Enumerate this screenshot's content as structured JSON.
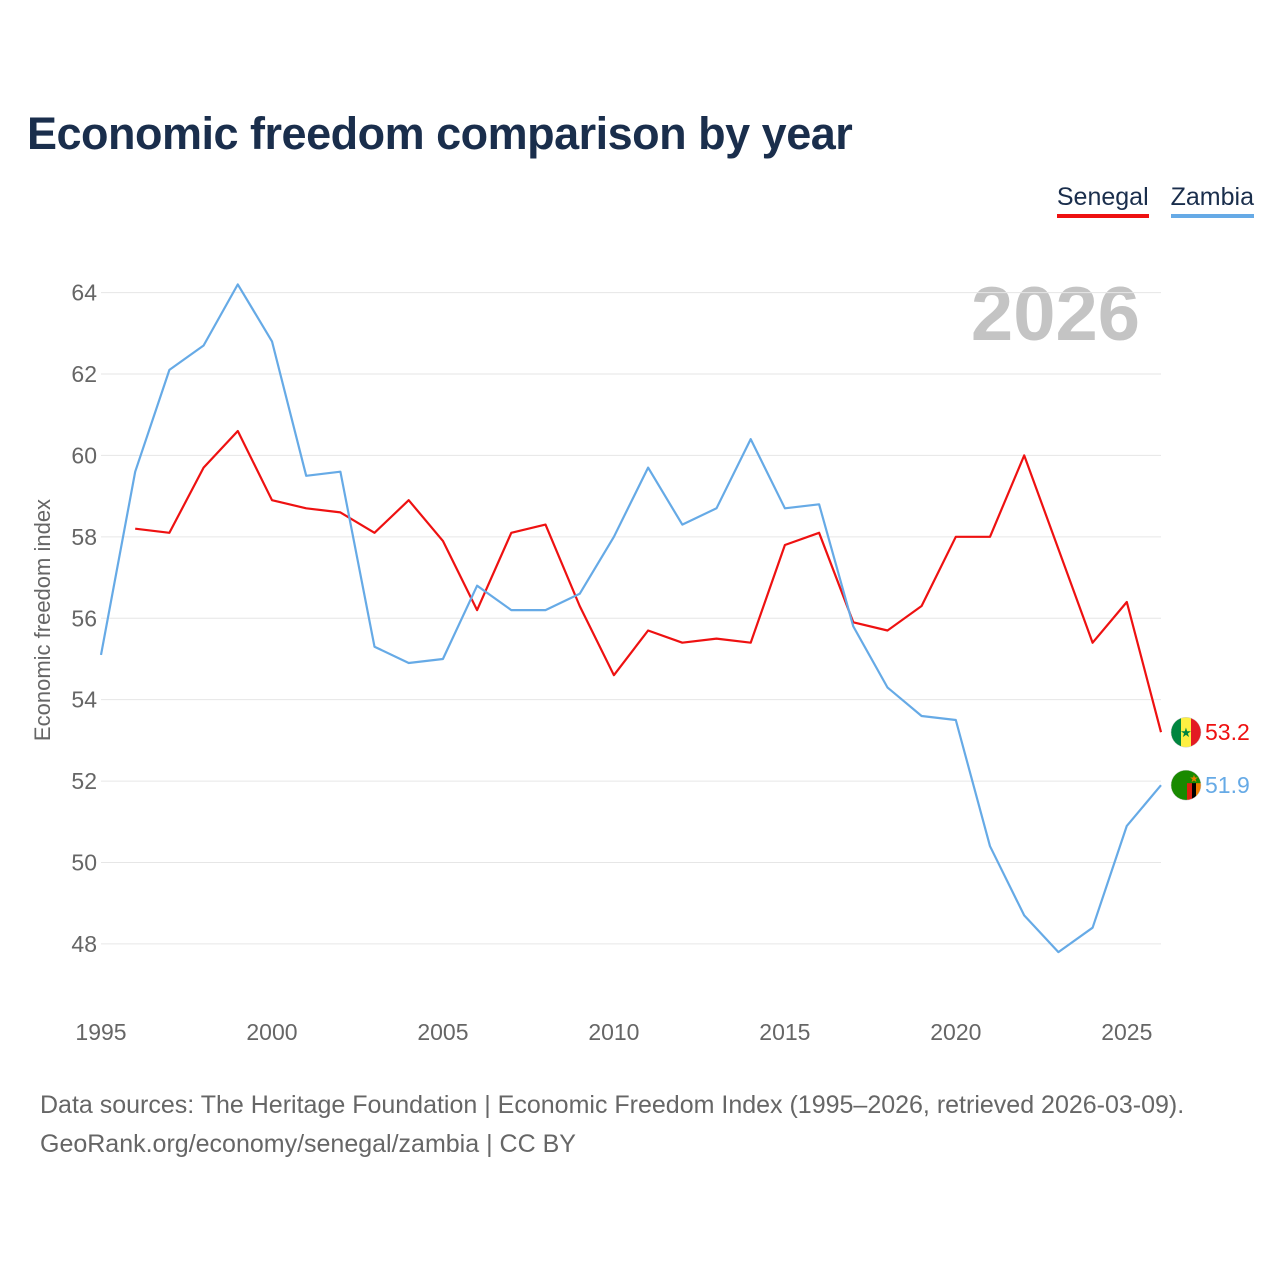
{
  "title": "Economic freedom comparison by year",
  "legend": {
    "senegal": "Senegal",
    "zambia": "Zambia"
  },
  "sources": {
    "line1": "Data sources: The Heritage Foundation | Economic Freedom Index (1995–2026, retrieved 2026-03-09).",
    "line2": "GeoRank.org/economy/senegal/zambia | CC BY"
  },
  "chart_data": {
    "type": "line",
    "title": "Economic freedom comparison by year",
    "xlabel": "",
    "ylabel": "Economic freedom index",
    "year_label": "2026",
    "xlim": [
      1995,
      2026
    ],
    "ylim": [
      46.5,
      64.8
    ],
    "xticks": [
      "1995",
      "2000",
      "2005",
      "2010",
      "2015",
      "2020",
      "2025"
    ],
    "yticks": [
      "48",
      "50",
      "52",
      "54",
      "56",
      "58",
      "60",
      "62",
      "64"
    ],
    "grid": true,
    "legend_position": "top-right",
    "series": [
      {
        "name": "Senegal",
        "color": "#ee1111",
        "x": [
          1996,
          1997,
          1998,
          1999,
          2000,
          2001,
          2002,
          2003,
          2004,
          2005,
          2006,
          2007,
          2008,
          2009,
          2010,
          2011,
          2012,
          2013,
          2014,
          2015,
          2016,
          2017,
          2018,
          2019,
          2020,
          2021,
          2022,
          2023,
          2024,
          2025,
          2026
        ],
        "values": [
          58.2,
          58.1,
          59.7,
          60.6,
          58.9,
          58.7,
          58.6,
          58.1,
          58.9,
          57.9,
          56.2,
          58.1,
          58.3,
          56.3,
          54.6,
          55.7,
          55.4,
          55.5,
          55.4,
          57.8,
          58.1,
          55.9,
          55.7,
          56.3,
          58.0,
          58.0,
          60.0,
          57.7,
          55.4,
          56.4,
          53.2
        ],
        "end_label": "53.2"
      },
      {
        "name": "Zambia",
        "color": "#66aae6",
        "x": [
          1995,
          1996,
          1997,
          1998,
          1999,
          2000,
          2001,
          2002,
          2003,
          2004,
          2005,
          2006,
          2007,
          2008,
          2009,
          2010,
          2011,
          2012,
          2013,
          2014,
          2015,
          2016,
          2017,
          2018,
          2019,
          2020,
          2021,
          2022,
          2023,
          2024,
          2025,
          2026
        ],
        "values": [
          55.1,
          59.6,
          62.1,
          62.7,
          64.2,
          62.8,
          59.5,
          59.6,
          55.3,
          54.9,
          55.0,
          56.8,
          56.2,
          56.2,
          56.6,
          58.0,
          59.7,
          58.3,
          58.7,
          60.4,
          58.7,
          58.8,
          55.8,
          54.3,
          53.6,
          53.5,
          50.4,
          48.7,
          47.8,
          48.4,
          50.9,
          51.9
        ],
        "end_label": "51.9"
      }
    ]
  }
}
